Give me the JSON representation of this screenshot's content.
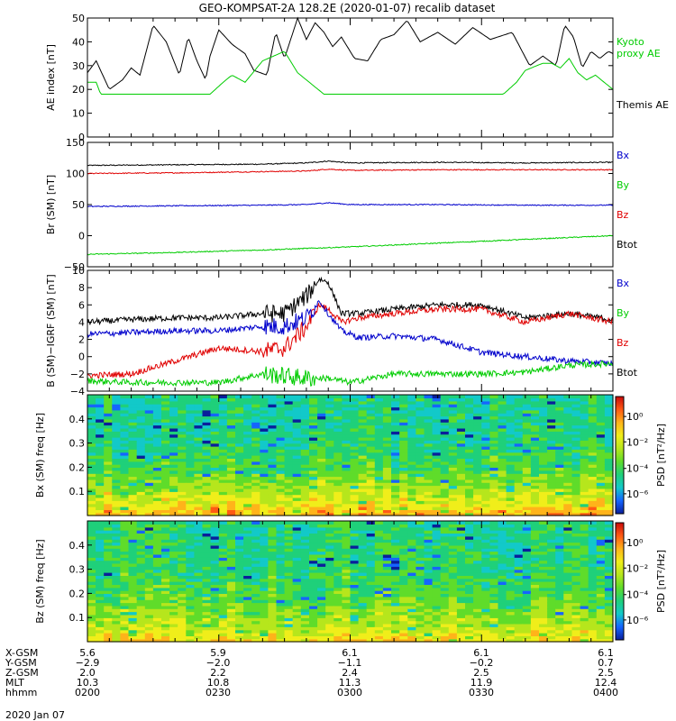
{
  "title": "GEO-KOMPSAT-2A 128.2E (2020-01-07) recalib dataset",
  "footer_date": "2020 Jan 07",
  "colors": {
    "black": "#000000",
    "red": "#e00000",
    "blue": "#0000cc",
    "green": "#00cc00"
  },
  "chart_data": [
    {
      "type": "line",
      "ylabel": "AE index [nT]",
      "ylim": [
        0,
        50
      ],
      "yticks": [
        "0",
        "10",
        "20",
        "30",
        "40",
        "50"
      ],
      "xlim": [
        0,
        120
      ],
      "legend": [
        {
          "text": "Kyoto proxy AE",
          "color": "#00cc00"
        },
        {
          "text": "Themis AE",
          "color": "#000000"
        }
      ],
      "series": [
        {
          "name": "Themis AE",
          "color": "#000000",
          "x": [
            0,
            2,
            5,
            8,
            10,
            12,
            15,
            18,
            21,
            23,
            25,
            27,
            28,
            30,
            33,
            36,
            38,
            41,
            43,
            45,
            48,
            50,
            52,
            54,
            56,
            58,
            61,
            64,
            67,
            70,
            73,
            76,
            80,
            84,
            88,
            92,
            97,
            101,
            104,
            107,
            109,
            111,
            113,
            115,
            117,
            119,
            120
          ],
          "y": [
            27,
            32,
            20,
            24,
            29,
            26,
            47,
            40,
            26,
            42,
            32,
            24,
            34,
            45,
            39,
            35,
            28,
            26,
            44,
            33,
            50,
            41,
            48,
            44,
            38,
            42,
            33,
            32,
            41,
            43,
            49,
            40,
            44,
            39,
            46,
            41,
            44,
            30,
            34,
            30,
            47,
            42,
            29,
            36,
            33,
            36,
            35
          ]
        },
        {
          "name": "Kyoto proxy AE",
          "color": "#00cc00",
          "x": [
            0,
            2,
            3,
            8,
            13,
            18,
            20,
            24,
            28,
            31,
            33,
            36,
            40,
            45,
            48,
            54,
            58,
            61,
            64,
            68,
            72,
            78,
            84,
            90,
            95,
            98,
            100,
            104,
            106,
            108,
            110,
            112,
            114,
            116,
            118,
            120
          ],
          "y": [
            23,
            23,
            18,
            18,
            18,
            18,
            18,
            18,
            18,
            23,
            26,
            23,
            32,
            36,
            27,
            18,
            18,
            18,
            18,
            18,
            18,
            18,
            18,
            18,
            18,
            23,
            28,
            31,
            31,
            29,
            33,
            27,
            24,
            26,
            23,
            20
          ]
        }
      ]
    },
    {
      "type": "line",
      "ylabel": "Br (SM) [nT]",
      "ylim": [
        -50,
        150
      ],
      "yticks": [
        "−50",
        "0",
        "50",
        "100",
        "150"
      ],
      "xlim": [
        0,
        120
      ],
      "legend": [
        {
          "text": "Bx",
          "color": "#0000cc"
        },
        {
          "text": "By",
          "color": "#00cc00"
        },
        {
          "text": "Bz",
          "color": "#e00000"
        },
        {
          "text": "Btot",
          "color": "#000000"
        }
      ],
      "series": [
        {
          "color": "#000000",
          "x": [
            0,
            20,
            40,
            50,
            55,
            60,
            80,
            100,
            120
          ],
          "y": [
            113,
            114,
            115,
            117,
            120,
            117,
            118,
            117,
            118
          ]
        },
        {
          "color": "#e00000",
          "x": [
            0,
            20,
            40,
            50,
            55,
            60,
            80,
            100,
            120
          ],
          "y": [
            100,
            101,
            103,
            104,
            107,
            105,
            106,
            106,
            106
          ]
        },
        {
          "color": "#0000cc",
          "x": [
            0,
            20,
            40,
            50,
            55,
            60,
            80,
            100,
            120
          ],
          "y": [
            47,
            48,
            49,
            50,
            53,
            50,
            50,
            49,
            49
          ]
        },
        {
          "color": "#00cc00",
          "x": [
            0,
            20,
            40,
            60,
            80,
            100,
            120
          ],
          "y": [
            -30,
            -27,
            -23,
            -18,
            -12,
            -6,
            0
          ]
        }
      ]
    },
    {
      "type": "line",
      "ylabel": "B (SM)−IGRF (SM) [nT]",
      "ylim": [
        -4,
        10
      ],
      "yticks": [
        "−4",
        "−2",
        "0",
        "2",
        "4",
        "6",
        "8",
        "10"
      ],
      "xlim": [
        0,
        120
      ],
      "legend": [
        {
          "text": "Bx",
          "color": "#0000cc"
        },
        {
          "text": "By",
          "color": "#00cc00"
        },
        {
          "text": "Bz",
          "color": "#e00000"
        },
        {
          "text": "Btot",
          "color": "#000000"
        }
      ],
      "series": [
        {
          "color": "#000000",
          "x": [
            0,
            10,
            20,
            30,
            40,
            45,
            50,
            53,
            55,
            58,
            62,
            70,
            80,
            90,
            100,
            110,
            120
          ],
          "y": [
            4,
            4.3,
            4.5,
            4.5,
            5,
            5,
            7,
            9,
            8.6,
            5,
            5,
            5.5,
            6,
            6,
            4.5,
            5,
            4.3
          ]
        },
        {
          "color": "#e00000",
          "x": [
            0,
            10,
            20,
            30,
            40,
            45,
            50,
            53,
            55,
            58,
            62,
            70,
            80,
            90,
            100,
            110,
            120
          ],
          "y": [
            -2.2,
            -2,
            -0.5,
            1,
            0.6,
            1,
            3.5,
            6,
            5.5,
            4,
            4.5,
            5,
            5.5,
            5.5,
            4,
            5,
            4
          ]
        },
        {
          "color": "#0000cc",
          "x": [
            0,
            10,
            20,
            30,
            40,
            45,
            50,
            53,
            55,
            58,
            62,
            70,
            80,
            90,
            100,
            110,
            120
          ],
          "y": [
            2.6,
            2.8,
            3,
            3,
            3.5,
            3.5,
            4.5,
            6.5,
            5,
            3,
            2.2,
            2.4,
            2,
            0.5,
            0,
            -0.5,
            -0.8
          ]
        },
        {
          "color": "#00cc00",
          "x": [
            0,
            10,
            20,
            30,
            40,
            50,
            55,
            60,
            70,
            80,
            90,
            100,
            110,
            120
          ],
          "y": [
            -2.8,
            -3,
            -3,
            -3,
            -2,
            -2.5,
            -2.5,
            -3,
            -2,
            -2,
            -2,
            -1.8,
            -1,
            -0.8
          ]
        }
      ]
    },
    {
      "type": "heatmap",
      "ylabel": "Bx (SM) freq [Hz]",
      "ylim": [
        0,
        0.5
      ],
      "yticks": [
        "0.1",
        "0.2",
        "0.3",
        "0.4"
      ],
      "colorbar_label": "PSD [nT²/Hz]",
      "colorbar_ticks": [
        "10⁰",
        "10⁻²",
        "10⁻⁴",
        "10⁻⁶"
      ]
    },
    {
      "type": "heatmap",
      "ylabel": "Bz (SM) freq [Hz]",
      "ylim": [
        0,
        0.5
      ],
      "yticks": [
        "0.1",
        "0.2",
        "0.3",
        "0.4"
      ],
      "colorbar_label": "PSD [nT²/Hz]",
      "colorbar_ticks": [
        "10⁰",
        "10⁻²",
        "10⁻⁴",
        "10⁻⁶"
      ]
    }
  ],
  "x_axis": {
    "row_labels": [
      "X-GSM",
      "Y-GSM",
      "Z-GSM",
      "MLT",
      "hhmm"
    ],
    "columns": [
      {
        "values": [
          "5.6",
          "−2.9",
          "2.0",
          "10.3",
          "0200"
        ]
      },
      {
        "values": [
          "5.9",
          "−2.0",
          "2.2",
          "10.8",
          "0230"
        ]
      },
      {
        "values": [
          "6.1",
          "−1.1",
          "2.4",
          "11.3",
          "0300"
        ]
      },
      {
        "values": [
          "6.1",
          "−0.2",
          "2.5",
          "11.9",
          "0330"
        ]
      },
      {
        "values": [
          "6.1",
          "0.7",
          "2.5",
          "12.4",
          "0400"
        ]
      }
    ]
  }
}
